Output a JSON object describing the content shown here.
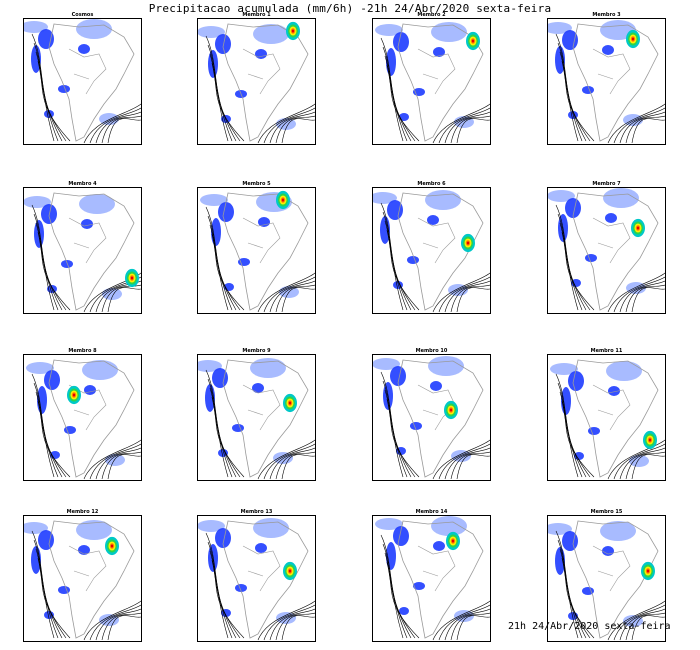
{
  "title": "Precipitacao acumulada (mm/6h) -21h 24/Abr/2020 sexta-feira",
  "footer": "21h 24/Abr/2020 sexta-feira",
  "colors": {
    "light_blue": "#9fb4ff",
    "blue": "#1e3cff",
    "cyan": "#00c8c8",
    "green": "#2ad44a",
    "yellow": "#ffee00",
    "orange": "#ff8c00",
    "red": "#e60000",
    "coast": "#9a9a9a",
    "isobar": "#000000"
  },
  "panels": [
    {
      "label": "Cosmos"
    },
    {
      "label": "Membro 1"
    },
    {
      "label": "Membro 2"
    },
    {
      "label": "Membro 3"
    },
    {
      "label": "Membro 4"
    },
    {
      "label": "Membro 5"
    },
    {
      "label": "Membro 6"
    },
    {
      "label": "Membro 7"
    },
    {
      "label": "Membro 8"
    },
    {
      "label": "Membro 9"
    },
    {
      "label": "Membro 10"
    },
    {
      "label": "Membro 11"
    },
    {
      "label": "Membro 12"
    },
    {
      "label": "Membro 13"
    },
    {
      "label": "Membro 14"
    },
    {
      "label": "Membro 15"
    }
  ]
}
